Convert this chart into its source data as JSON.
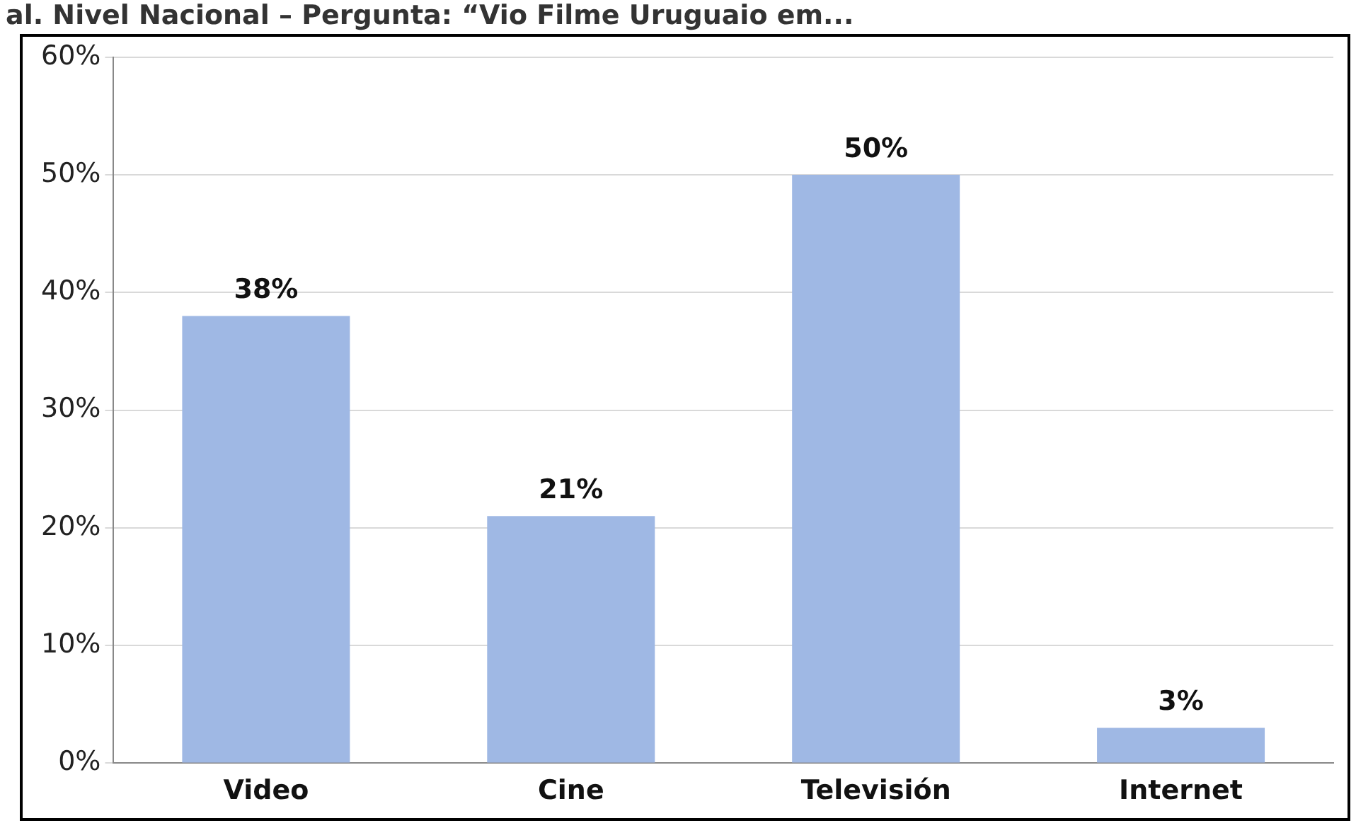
{
  "chart_data": {
    "type": "bar",
    "title": "al. Nivel Nacional – Pergunta: “Vio Filme Uruguaio em...",
    "categories": [
      "Video",
      "Cine",
      "Televisión",
      "Internet"
    ],
    "values": [
      38,
      21,
      50,
      3
    ],
    "value_labels": [
      "38%",
      "21%",
      "50%",
      "3%"
    ],
    "color": "#9fb8e4",
    "ylim": [
      0,
      60
    ],
    "yticks": [
      {
        "value": 0,
        "label": "0%"
      },
      {
        "value": 10,
        "label": "10%"
      },
      {
        "value": 20,
        "label": "20%"
      },
      {
        "value": 30,
        "label": "30%"
      },
      {
        "value": 40,
        "label": "40%"
      },
      {
        "value": 50,
        "label": "50%"
      },
      {
        "value": 60,
        "label": "60%"
      }
    ],
    "grid": "y",
    "legend": false
  }
}
